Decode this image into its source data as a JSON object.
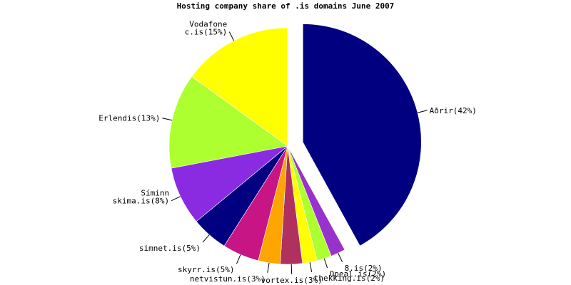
{
  "chart_data": {
    "type": "pie",
    "title": "Hosting company share of .is domains June 2007",
    "categories": [
      [
        "Aðrir(42%)"
      ],
      [
        "8.is(2%)"
      ],
      [
        "Opeal.is(2%)"
      ],
      [
        "thekking.is(2%)"
      ],
      [
        "vortex.is(3%)"
      ],
      [
        "netvistun.is(3%)"
      ],
      [
        "skyrr.is(5%)"
      ],
      [
        "simnet.is(5%)"
      ],
      [
        "Síminn",
        "skima.is(8%)"
      ],
      [
        "Erlendis(13%)"
      ],
      [
        "Vodafone",
        "c.is(15%)"
      ]
    ],
    "values": [
      42,
      2,
      2,
      2,
      3,
      3,
      5,
      5,
      8,
      13,
      15
    ],
    "colors": [
      "#000080",
      "#9932cc",
      "#adff2f",
      "#ffff00",
      "#b03060",
      "#ffa500",
      "#c71585",
      "#000080",
      "#8a2be2",
      "#adff2f",
      "#ffff00"
    ],
    "explode": [
      true,
      false,
      false,
      false,
      false,
      false,
      false,
      false,
      false,
      false,
      false
    ]
  }
}
